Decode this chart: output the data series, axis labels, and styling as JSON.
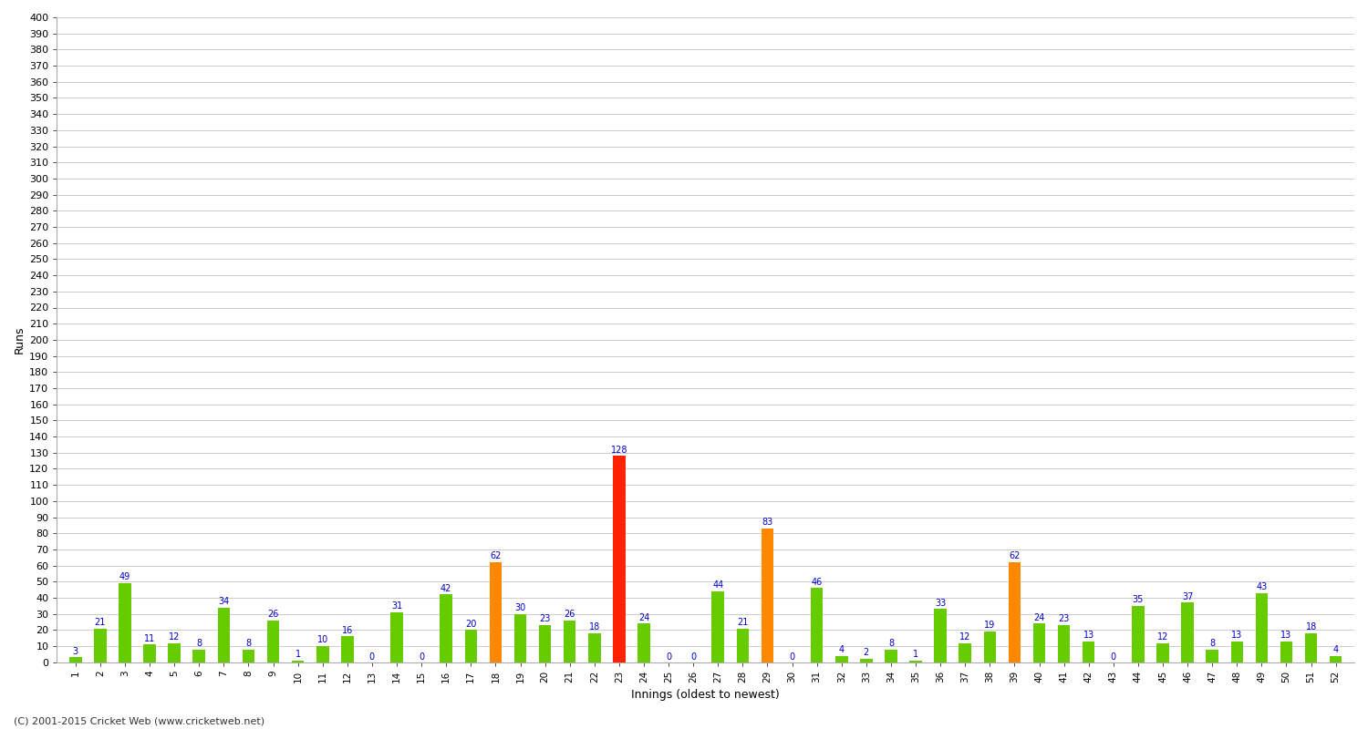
{
  "values": [
    3,
    21,
    49,
    11,
    12,
    8,
    34,
    8,
    26,
    1,
    10,
    16,
    0,
    31,
    0,
    42,
    20,
    62,
    30,
    23,
    26,
    18,
    128,
    24,
    0,
    0,
    44,
    21,
    83,
    0,
    46,
    4,
    2,
    8,
    1,
    33,
    12,
    19,
    62,
    24,
    23,
    13,
    0,
    35,
    12,
    37,
    8,
    13,
    43,
    13,
    18,
    4
  ],
  "innings_labels": [
    "1",
    "2",
    "3",
    "4",
    "5",
    "6",
    "7",
    "8",
    "9",
    "10",
    "11",
    "12",
    "13",
    "14",
    "15",
    "16",
    "17",
    "18",
    "19",
    "20",
    "21",
    "22",
    "23",
    "24",
    "25",
    "26",
    "27",
    "28",
    "29",
    "30",
    "31",
    "32",
    "33",
    "34",
    "35",
    "36",
    "37",
    "38",
    "39",
    "40",
    "41",
    "42",
    "43",
    "44",
    "45",
    "46",
    "47",
    "48",
    "49",
    "50",
    "51",
    "52"
  ],
  "hundred_indices": [
    22
  ],
  "fifty_indices": [
    17,
    28,
    38
  ],
  "colors": {
    "normal": "#66cc00",
    "hundred": "#ff2200",
    "fifty": "#ff8800"
  },
  "ylabel": "Runs",
  "xlabel": "Innings (oldest to newest)",
  "ylim": [
    0,
    400
  ],
  "ytick_step": 10,
  "background_color": "#ffffff",
  "grid_color": "#cccccc",
  "label_color": "#0000cc",
  "footer": "(C) 2001-2015 Cricket Web (www.cricketweb.net)"
}
